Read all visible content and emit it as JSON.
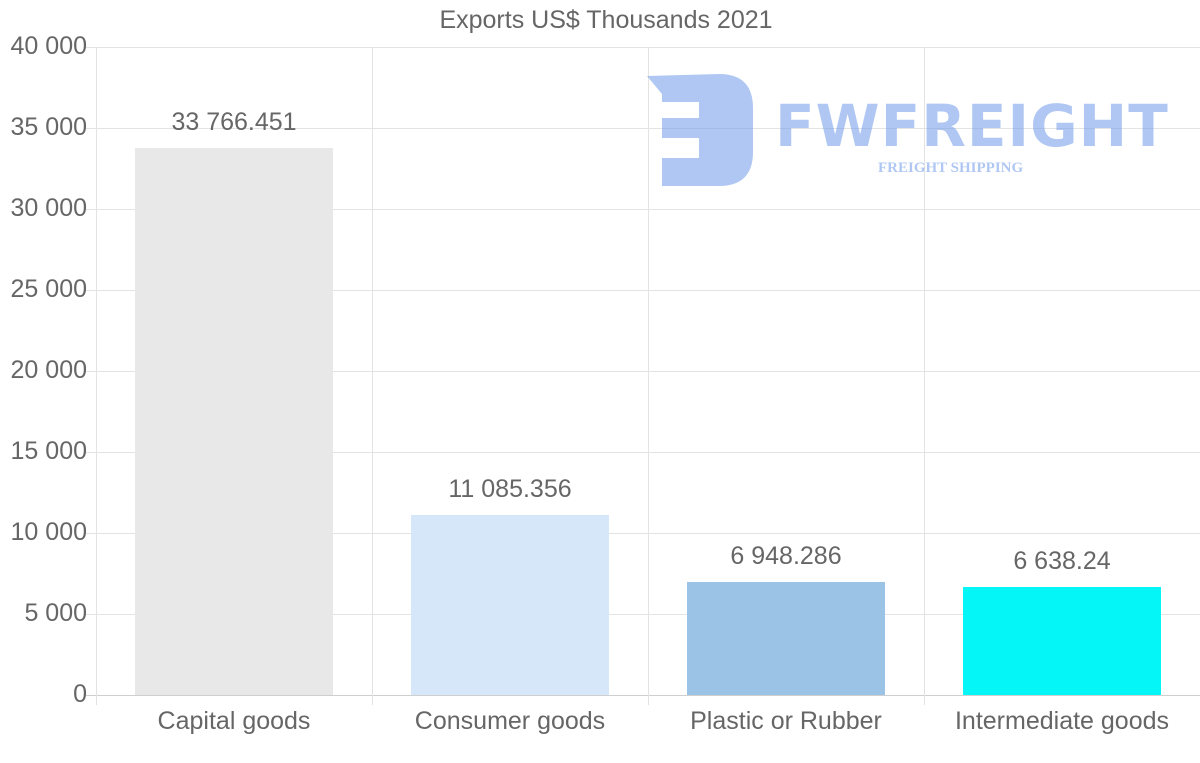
{
  "chart_data": {
    "type": "bar",
    "title": "Exports US$ Thousands 2021",
    "xlabel": "",
    "ylabel": "",
    "categories": [
      "Capital goods",
      "Consumer goods",
      "Plastic or Rubber",
      "Intermediate goods"
    ],
    "values": [
      33766.451,
      11085.356,
      6948.286,
      6638.24
    ],
    "value_labels": [
      "33 766.451",
      "11 085.356",
      "6 948.286",
      "6 638.24"
    ],
    "colors": [
      "#e8e8e8",
      "#d6e7f9",
      "#9bc3e6",
      "#05f6f7"
    ],
    "ylim": [
      0,
      40000
    ],
    "yticks": [
      0,
      5000,
      10000,
      15000,
      20000,
      25000,
      30000,
      35000,
      40000
    ],
    "ytick_labels": [
      "0",
      "5 000",
      "10 000",
      "15 000",
      "20 000",
      "25 000",
      "30 000",
      "35 000",
      "40 000"
    ],
    "grid": true,
    "legend": "none"
  },
  "watermark": {
    "brand": "FWFREIGHT",
    "tagline": "FREIGHT SHIPPING",
    "color": "#6f9be8"
  }
}
